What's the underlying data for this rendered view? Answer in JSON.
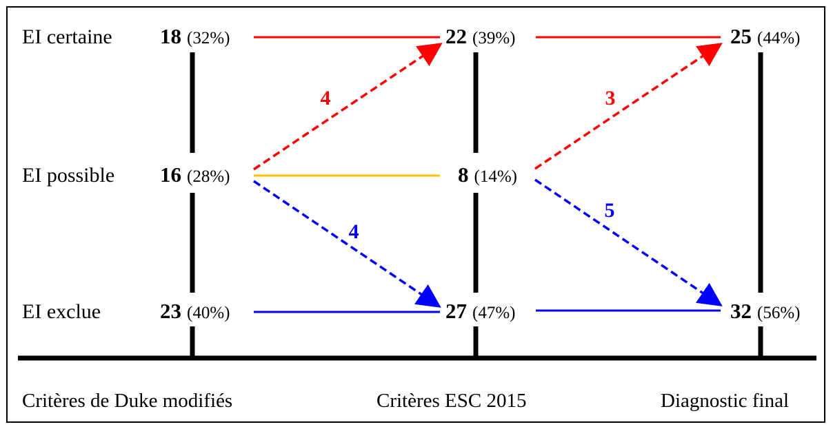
{
  "colors": {
    "certain": "#ff0000",
    "possible": "#ffc000",
    "excluded": "#0000ff",
    "axis": "#000000"
  },
  "rows": [
    {
      "id": "certaine",
      "label": "EI certaine"
    },
    {
      "id": "possible",
      "label": "EI possible"
    },
    {
      "id": "exclue",
      "label": "EI exclue"
    }
  ],
  "columns": [
    {
      "id": "duke",
      "label": "Critères de Duke modifiés",
      "values": [
        {
          "n": "18",
          "pct": "(32%)"
        },
        {
          "n": "16",
          "pct": "(28%)"
        },
        {
          "n": "23",
          "pct": "(40%)"
        }
      ]
    },
    {
      "id": "esc",
      "label": "Critères ESC 2015",
      "values": [
        {
          "n": "22",
          "pct": "(39%)"
        },
        {
          "n": "8",
          "pct": "(14%)"
        },
        {
          "n": "27",
          "pct": "(47%)"
        }
      ]
    },
    {
      "id": "final",
      "label": "Diagnostic final",
      "values": [
        {
          "n": "25",
          "pct": "(44%)"
        },
        {
          "n": "32",
          "pct": "(56%)"
        }
      ]
    }
  ],
  "flows": [
    {
      "id": "duke-to-esc-certain",
      "count": "4",
      "color": "#ff0000",
      "label_color": "#ff0000"
    },
    {
      "id": "duke-to-esc-exclue",
      "count": "4",
      "color": "#0000ff",
      "label_color": "#0000ff"
    },
    {
      "id": "esc-to-final-certain",
      "count": "3",
      "color": "#ff0000",
      "label_color": "#ff0000"
    },
    {
      "id": "esc-to-final-exclue",
      "count": "5",
      "color": "#0000ff",
      "label_color": "#0000ff"
    }
  ]
}
